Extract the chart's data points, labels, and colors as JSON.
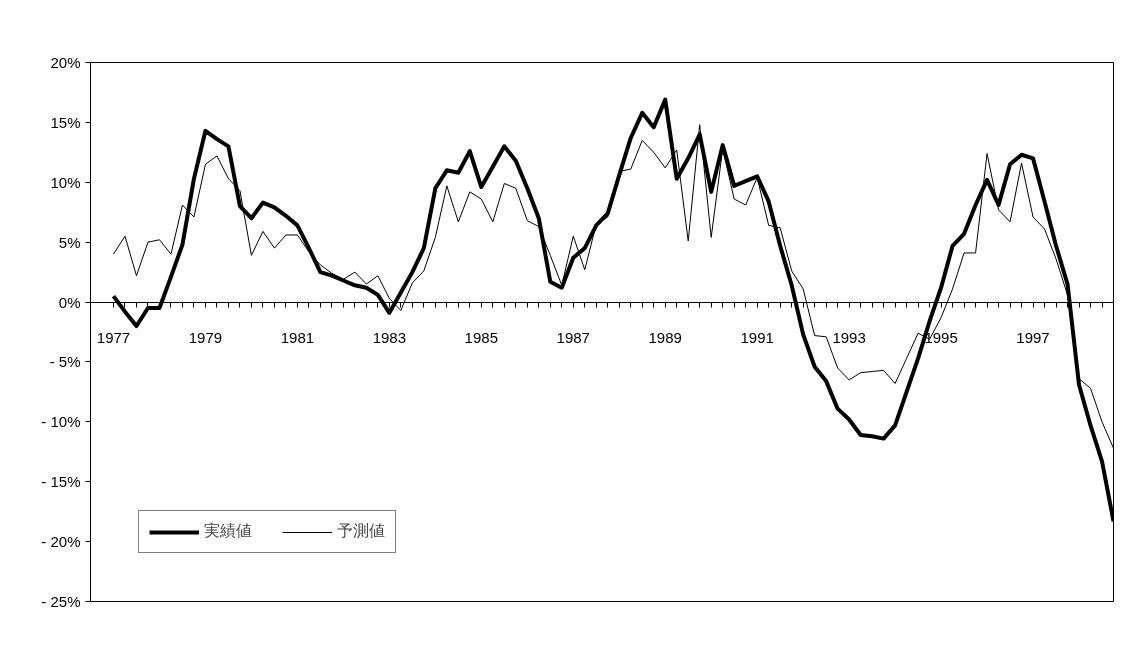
{
  "chart_data": {
    "type": "line",
    "categories": [
      "1977",
      null,
      null,
      null,
      null,
      null,
      null,
      null,
      "1979",
      null,
      null,
      null,
      null,
      null,
      null,
      null,
      "1981",
      null,
      null,
      null,
      null,
      null,
      null,
      null,
      "1983",
      null,
      null,
      null,
      null,
      null,
      null,
      null,
      "1985",
      null,
      null,
      null,
      null,
      null,
      null,
      null,
      "1987",
      null,
      null,
      null,
      null,
      null,
      null,
      null,
      "1989",
      null,
      null,
      null,
      null,
      null,
      null,
      null,
      "1991",
      null,
      null,
      null,
      null,
      null,
      null,
      null,
      "1993",
      null,
      null,
      null,
      null,
      null,
      null,
      null,
      "1995",
      null,
      null,
      null,
      null,
      null,
      null,
      null,
      "1997",
      null,
      null,
      null,
      null,
      null,
      null,
      null
    ],
    "series": [
      {
        "name": "実績値",
        "color": "#000000",
        "values": [
          0.5,
          -0.8,
          -2.0,
          -0.5,
          -0.5,
          2.1,
          4.8,
          10.3,
          14.3,
          13.6,
          13.0,
          8.0,
          7.0,
          8.3,
          7.9,
          7.2,
          6.4,
          4.5,
          2.5,
          2.2,
          1.8,
          1.4,
          1.2,
          0.6,
          -0.9,
          0.8,
          2.5,
          4.5,
          9.5,
          11.0,
          10.8,
          12.6,
          9.6,
          11.3,
          13.0,
          11.8,
          9.5,
          7.0,
          1.7,
          1.2,
          3.7,
          4.5,
          6.4,
          7.4,
          10.6,
          13.7,
          15.8,
          14.6,
          16.9,
          10.3,
          12.0,
          14.0,
          9.2,
          13.1,
          9.7,
          10.1,
          10.5,
          8.4,
          4.7,
          1.4,
          -2.7,
          -5.4,
          -6.6,
          -8.9,
          -9.8,
          -11.1,
          -11.2,
          -11.4,
          -10.3,
          -7.5,
          -4.7,
          -1.6,
          1.2,
          4.7,
          5.7,
          8.1,
          10.2,
          8.1,
          11.5,
          12.3,
          12.0,
          8.4,
          4.7,
          1.5,
          -6.9,
          -10.3,
          -13.3,
          -18.3
        ]
      },
      {
        "name": "予測値",
        "color": "#000000",
        "values": [
          4.0,
          5.5,
          2.2,
          5.0,
          5.2,
          4.0,
          8.1,
          7.1,
          11.5,
          12.2,
          10.3,
          9.3,
          3.9,
          5.9,
          4.5,
          5.6,
          5.6,
          4.2,
          3.1,
          2.4,
          1.9,
          2.5,
          1.5,
          2.2,
          0.3,
          -0.7,
          1.6,
          2.6,
          5.4,
          9.7,
          6.7,
          9.2,
          8.6,
          6.7,
          9.9,
          9.5,
          6.8,
          6.3,
          3.9,
          1.4,
          5.5,
          2.7,
          6.5,
          7.1,
          10.9,
          11.1,
          13.5,
          12.5,
          11.2,
          12.7,
          5.1,
          14.8,
          5.4,
          12.8,
          8.6,
          8.1,
          10.4,
          6.4,
          6.2,
          2.6,
          1.1,
          -2.8,
          -2.9,
          -5.5,
          -6.5,
          -5.9,
          -5.8,
          -5.7,
          -6.8,
          -4.7,
          -2.6,
          -3.1,
          -1.3,
          1.1,
          4.1,
          4.1,
          12.4,
          7.7,
          6.7,
          11.6,
          7.1,
          6.1,
          3.6,
          0.6,
          -6.4,
          -7.2,
          -10.0,
          -12.2
        ]
      }
    ],
    "ylim": [
      -25,
      20
    ],
    "yticks": [
      {
        "value": -25,
        "label": "- 25%"
      },
      {
        "value": -20,
        "label": "- 20%"
      },
      {
        "value": -15,
        "label": "- 15%"
      },
      {
        "value": -10,
        "label": "- 10%"
      },
      {
        "value": -5,
        "label": "- 5%"
      },
      {
        "value": 0,
        "label": "0%"
      },
      {
        "value": 5,
        "label": "5%"
      },
      {
        "value": 10,
        "label": "10%"
      },
      {
        "value": 15,
        "label": "15%"
      },
      {
        "value": 20,
        "label": "20%"
      }
    ],
    "grid": false,
    "legend": "bottom left",
    "marker": "none",
    "line_style": "solid"
  }
}
